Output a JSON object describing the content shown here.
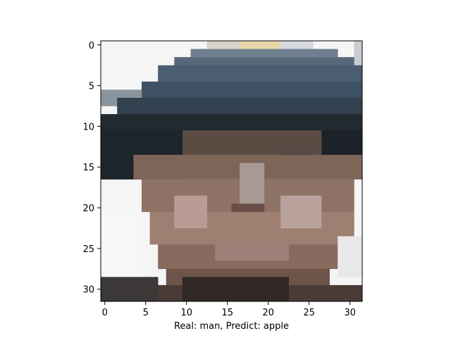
{
  "chart_data": {
    "type": "heatmap",
    "title": "",
    "xlabel": "Real: man, Predict: apple",
    "ylabel": "",
    "xlim": [
      -0.5,
      31.5
    ],
    "ylim": [
      31.5,
      -0.5
    ],
    "grid": false,
    "xticks": [
      0,
      5,
      10,
      15,
      20,
      25,
      30
    ],
    "yticks": [
      0,
      5,
      10,
      15,
      20,
      25,
      30
    ],
    "xtick_labels": [
      "0",
      "5",
      "10",
      "15",
      "20",
      "25",
      "30"
    ],
    "ytick_labels": [
      "0",
      "5",
      "10",
      "15",
      "20",
      "25",
      "30"
    ],
    "image_size": [
      32,
      32
    ],
    "pixel_layers": [
      {
        "color": "#f5f5f5",
        "rect": [
          0,
          0,
          31,
          31
        ]
      },
      {
        "color": "#d8d2c8",
        "rect": [
          13,
          0,
          16,
          0
        ]
      },
      {
        "color": "#e6d6a8",
        "rect": [
          17,
          0,
          21,
          0
        ]
      },
      {
        "color": "#d5d9de",
        "rect": [
          22,
          0,
          25,
          0
        ]
      },
      {
        "color": "#c9ccd1",
        "rect": [
          31,
          0,
          31,
          3
        ]
      },
      {
        "color": "#6f7f8f",
        "rect": [
          11,
          1,
          28,
          1
        ]
      },
      {
        "color": "#56687a",
        "rect": [
          9,
          2,
          30,
          2
        ]
      },
      {
        "color": "#4b5e70",
        "rect": [
          7,
          3,
          31,
          4
        ]
      },
      {
        "color": "#3e5163",
        "rect": [
          5,
          5,
          31,
          6
        ]
      },
      {
        "color": "#8a949c",
        "rect": [
          0,
          6,
          4,
          7
        ]
      },
      {
        "color": "#32414f",
        "rect": [
          2,
          7,
          31,
          8
        ]
      },
      {
        "color": "#222a31",
        "rect": [
          0,
          9,
          31,
          10
        ]
      },
      {
        "color": "#1e252a",
        "rect": [
          0,
          11,
          9,
          16
        ]
      },
      {
        "color": "#1c2227",
        "rect": [
          27,
          11,
          31,
          13
        ]
      },
      {
        "color": "#5c4b42",
        "rect": [
          10,
          11,
          26,
          13
        ]
      },
      {
        "color": "#7d6558",
        "rect": [
          4,
          14,
          31,
          16
        ]
      },
      {
        "color": "#8e7266",
        "rect": [
          5,
          17,
          30,
          20
        ]
      },
      {
        "color": "#a07f73",
        "rect": [
          6,
          21,
          30,
          24
        ]
      },
      {
        "color": "#8a6a5e",
        "rect": [
          7,
          25,
          29,
          27
        ]
      },
      {
        "color": "#6e5448",
        "rect": [
          8,
          28,
          27,
          29
        ]
      },
      {
        "color": "#4a3a36",
        "rect": [
          0,
          30,
          31,
          31
        ]
      },
      {
        "color": "#a89a94",
        "rect": [
          17,
          15,
          19,
          19
        ]
      },
      {
        "color": "#b99c94",
        "rect": [
          9,
          19,
          12,
          22
        ]
      },
      {
        "color": "#b9a29b",
        "rect": [
          22,
          19,
          26,
          22
        ]
      },
      {
        "color": "#6a4e48",
        "rect": [
          16,
          20,
          19,
          20
        ]
      },
      {
        "color": "#5a4844",
        "rect": [
          22,
          13,
          25,
          13
        ]
      },
      {
        "color": "#9e7e76",
        "rect": [
          14,
          25,
          22,
          26
        ]
      },
      {
        "color": "#f7f7f7",
        "rect": [
          0,
          21,
          4,
          29
        ]
      },
      {
        "color": "#e8e8e8",
        "rect": [
          29,
          24,
          31,
          28
        ]
      },
      {
        "color": "#2f2826",
        "rect": [
          10,
          29,
          22,
          31
        ]
      },
      {
        "color": "#3b3837",
        "rect": [
          0,
          29,
          6,
          31
        ]
      }
    ]
  }
}
